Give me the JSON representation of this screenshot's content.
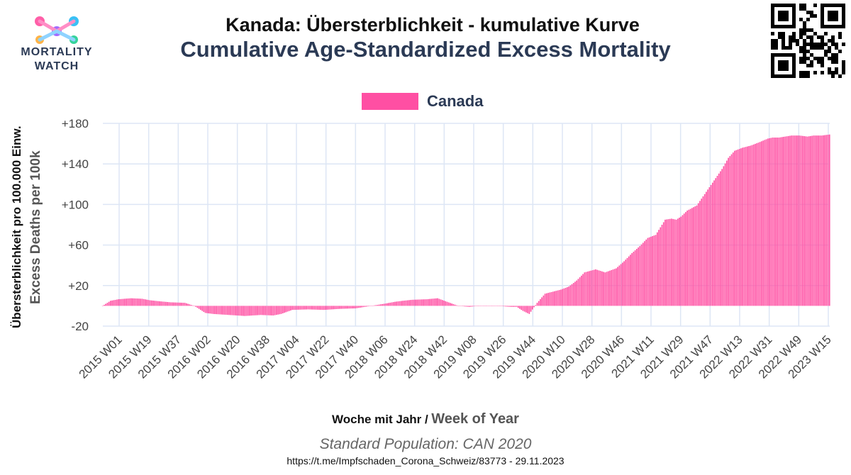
{
  "logo": {
    "line1": "MORTALITY",
    "line2": "WATCH"
  },
  "title_de": "Kanada: Übersterblichkeit - kumulative Kurve",
  "title_en": "Cumulative Age-Standardized Excess Mortality",
  "y_label_de": "Übersterblichkeit pro 100.000 Einw.",
  "y_label_en": "Excess Deaths per 100k",
  "x_label_de": "Woche mit Jahr /",
  "x_label_en": "Week of Year",
  "standard_population": "Standard Population: CAN 2020",
  "source": "https://t.me/Impfschaden_Corona_Schweiz/83773 - 29.11.2023",
  "colors": {
    "series": "#ff4fa3",
    "grid": "#dde6f5",
    "axis_text": "#444444"
  },
  "chart_data": {
    "type": "bar",
    "title": "Cumulative Age-Standardized Excess Mortality",
    "xlabel": "Week of Year",
    "ylabel": "Excess Deaths per 100k",
    "ylim": [
      -20,
      180
    ],
    "yticks": [
      -20,
      20,
      60,
      100,
      140,
      180
    ],
    "ytick_labels": [
      "-20",
      "+20",
      "+60",
      "+100",
      "+140",
      "+180"
    ],
    "x_tick_labels": [
      "2015 W01",
      "2015 W19",
      "2015 W37",
      "2016 W02",
      "2016 W20",
      "2016 W38",
      "2017 W04",
      "2017 W22",
      "2017 W40",
      "2018 W06",
      "2018 W24",
      "2018 W42",
      "2019 W08",
      "2019 W26",
      "2019 W44",
      "2020 W10",
      "2020 W28",
      "2020 W46",
      "2021 W11",
      "2021 W29",
      "2021 W47",
      "2022 W13",
      "2022 W31",
      "2022 W49",
      "2023 W15"
    ],
    "legend": [
      "Canada"
    ],
    "series": [
      {
        "name": "Canada",
        "week_index": [
          0,
          5,
          10,
          18,
          25,
          30,
          36,
          43,
          52,
          58,
          65,
          70,
          80,
          90,
          100,
          108,
          113,
          120,
          130,
          140,
          150,
          160,
          170,
          178,
          185,
          190,
          196,
          205,
          212,
          218,
          225,
          232,
          238,
          243,
          250,
          258,
          262,
          266,
          270,
          275,
          280,
          285,
          290,
          295,
          300,
          305,
          312,
          318,
          325,
          330,
          335,
          340,
          345,
          350,
          356,
          360,
          363,
          366,
          370,
          376,
          380,
          384,
          388,
          392,
          396,
          400,
          405,
          410,
          415,
          418,
          421,
          424,
          428,
          432,
          436,
          441,
          446,
          450,
          455,
          460
        ],
        "values": [
          0,
          5,
          6.5,
          7.5,
          7,
          5.5,
          4.5,
          3.5,
          3,
          0,
          -7,
          -8,
          -9,
          -10,
          -9,
          -9.5,
          -8,
          -4,
          -3.5,
          -4,
          -3,
          -2.5,
          0,
          2,
          4,
          5,
          6,
          6.5,
          7.5,
          4,
          0,
          -1,
          0,
          0,
          0,
          -1,
          -1,
          -5,
          -8,
          3,
          12,
          14,
          16,
          19,
          25,
          33,
          36,
          33,
          37,
          44,
          52,
          59,
          67,
          70,
          85,
          86,
          85,
          88,
          94,
          99,
          108,
          117,
          126,
          135,
          146,
          153,
          156,
          158,
          161,
          163,
          165,
          166,
          166,
          167,
          168,
          168,
          167,
          168,
          168,
          169
        ]
      }
    ]
  }
}
